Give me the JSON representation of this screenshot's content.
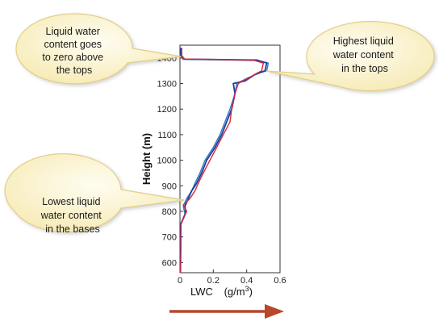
{
  "chart_data": {
    "type": "line",
    "xlabel_main": "LWC",
    "xlabel_unit": "(g/m",
    "xlabel_sup": "3",
    "xlabel_close": ")",
    "ylabel": "Height (m)",
    "xlim": [
      0,
      0.6
    ],
    "ylim": [
      560,
      1450
    ],
    "xticks": [
      0,
      0.2,
      0.4,
      0.6
    ],
    "xtick_labels": [
      "0",
      "0.2",
      "0.4",
      "0.6"
    ],
    "yticks": [
      600,
      700,
      800,
      900,
      1000,
      1100,
      1200,
      1300,
      1400
    ],
    "ytick_labels": [
      "600",
      "700",
      "800",
      "900",
      "1000",
      "1100",
      "1200",
      "1300",
      "1400"
    ],
    "series": [
      {
        "color": "#2e78c7",
        "points": [
          [
            0.003,
            560
          ],
          [
            0.004,
            600
          ],
          [
            0.004,
            650
          ],
          [
            0.005,
            700
          ],
          [
            0.006,
            750
          ],
          [
            0.03,
            790
          ],
          [
            0.02,
            820
          ],
          [
            0.04,
            850
          ],
          [
            0.07,
            880
          ],
          [
            0.09,
            910
          ],
          [
            0.12,
            950
          ],
          [
            0.15,
            1000
          ],
          [
            0.2,
            1050
          ],
          [
            0.24,
            1100
          ],
          [
            0.27,
            1150
          ],
          [
            0.3,
            1200
          ],
          [
            0.33,
            1260
          ],
          [
            0.34,
            1300
          ],
          [
            0.4,
            1320
          ],
          [
            0.47,
            1340
          ],
          [
            0.52,
            1350
          ],
          [
            0.53,
            1380
          ],
          [
            0.47,
            1390
          ],
          [
            0.03,
            1395
          ],
          [
            0.01,
            1410
          ],
          [
            0.01,
            1440
          ]
        ]
      },
      {
        "color": "#1c3d9c",
        "points": [
          [
            0.002,
            560
          ],
          [
            0.003,
            600
          ],
          [
            0.003,
            650
          ],
          [
            0.004,
            700
          ],
          [
            0.005,
            750
          ],
          [
            0.035,
            795
          ],
          [
            0.03,
            820
          ],
          [
            0.05,
            850
          ],
          [
            0.07,
            880
          ],
          [
            0.1,
            910
          ],
          [
            0.13,
            950
          ],
          [
            0.16,
            1000
          ],
          [
            0.21,
            1050
          ],
          [
            0.25,
            1100
          ],
          [
            0.28,
            1150
          ],
          [
            0.31,
            1200
          ],
          [
            0.33,
            1260
          ],
          [
            0.32,
            1300
          ],
          [
            0.39,
            1310
          ],
          [
            0.45,
            1335
          ],
          [
            0.51,
            1350
          ],
          [
            0.52,
            1380
          ],
          [
            0.46,
            1392
          ],
          [
            0.02,
            1395
          ],
          [
            0.005,
            1410
          ],
          [
            0.005,
            1440
          ]
        ]
      },
      {
        "color": "#d7263d",
        "points": [
          [
            0.004,
            560
          ],
          [
            0.005,
            600
          ],
          [
            0.006,
            650
          ],
          [
            0.006,
            700
          ],
          [
            0.007,
            750
          ],
          [
            0.04,
            800
          ],
          [
            0.02,
            825
          ],
          [
            0.06,
            850
          ],
          [
            0.09,
            880
          ],
          [
            0.11,
            910
          ],
          [
            0.14,
            950
          ],
          [
            0.18,
            1000
          ],
          [
            0.22,
            1050
          ],
          [
            0.26,
            1100
          ],
          [
            0.3,
            1150
          ],
          [
            0.31,
            1200
          ],
          [
            0.33,
            1260
          ],
          [
            0.35,
            1300
          ],
          [
            0.42,
            1325
          ],
          [
            0.46,
            1340
          ],
          [
            0.49,
            1350
          ],
          [
            0.5,
            1380
          ],
          [
            0.44,
            1392
          ],
          [
            0.02,
            1396
          ],
          [
            0.01,
            1410
          ],
          [
            0.01,
            1440
          ]
        ]
      }
    ]
  },
  "callouts": {
    "tops_zero": [
      "Liquid water",
      "content goes",
      "to zero above",
      "the tops"
    ],
    "highest": [
      "Highest liquid",
      "water content",
      "in the tops"
    ],
    "lowest": [
      "Lowest liquid",
      "water content",
      "in the bases"
    ]
  },
  "colors": {
    "callout_fill": "#fbf3cf",
    "callout_stroke": "#e2cf88",
    "arrow": "#b8472b"
  },
  "icons": {
    "arrow": "right-arrow-icon"
  }
}
